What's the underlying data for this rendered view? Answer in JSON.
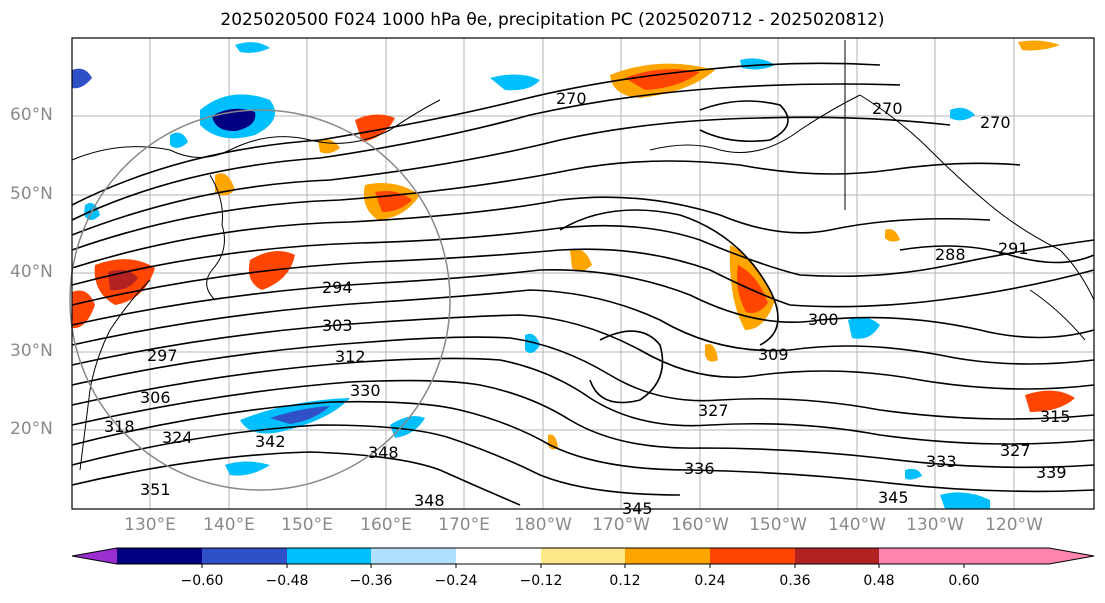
{
  "title": "2025020500 F024 1000 hPa θe, precipitation PC (2025020712 - 2025020812)",
  "lat_labels": [
    "60°N",
    "50°N",
    "40°N",
    "30°N",
    "20°N"
  ],
  "lon_labels": [
    "130°E",
    "140°E",
    "150°E",
    "160°E",
    "170°E",
    "180°W",
    "170°W",
    "160°W",
    "150°W",
    "140°W",
    "130°W",
    "120°W"
  ],
  "contour_labels": [
    "270",
    "270",
    "270",
    "288",
    "291",
    "294",
    "303",
    "297",
    "312",
    "306",
    "330",
    "318",
    "324",
    "342",
    "348",
    "348",
    "345",
    "336",
    "327",
    "309",
    "300",
    "333",
    "315",
    "327",
    "339",
    "345",
    "351"
  ],
  "colorbar": {
    "colors": [
      "#9b30d0",
      "#000080",
      "#3050c8",
      "#00bfff",
      "#b0e2ff",
      "#ffffff",
      "#ffe88a",
      "#ffa500",
      "#ff4500",
      "#b22222",
      "#ff85ad"
    ],
    "ticks": [
      "−0.60",
      "−0.48",
      "−0.36",
      "−0.24",
      "−0.12",
      "0.12",
      "0.24",
      "0.36",
      "0.48",
      "0.60"
    ]
  }
}
